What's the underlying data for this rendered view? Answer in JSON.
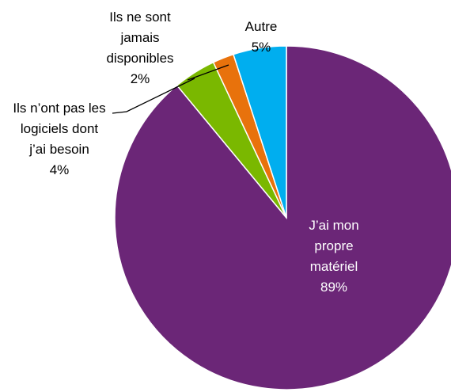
{
  "chart_data": {
    "type": "pie",
    "categories": [
      "J’ai mon propre matériel",
      "Ils n’ont pas les logiciels dont j’ai besoin",
      "Ils ne sont jamais disponibles",
      "Autre"
    ],
    "values": [
      89,
      4,
      2,
      5
    ],
    "value_labels": [
      "89%",
      "4%",
      "2%",
      "5%"
    ],
    "colors": [
      "#6b2677",
      "#7ab800",
      "#e8720c",
      "#00aeef"
    ],
    "start_angle": 0,
    "direction": "clockwise"
  }
}
